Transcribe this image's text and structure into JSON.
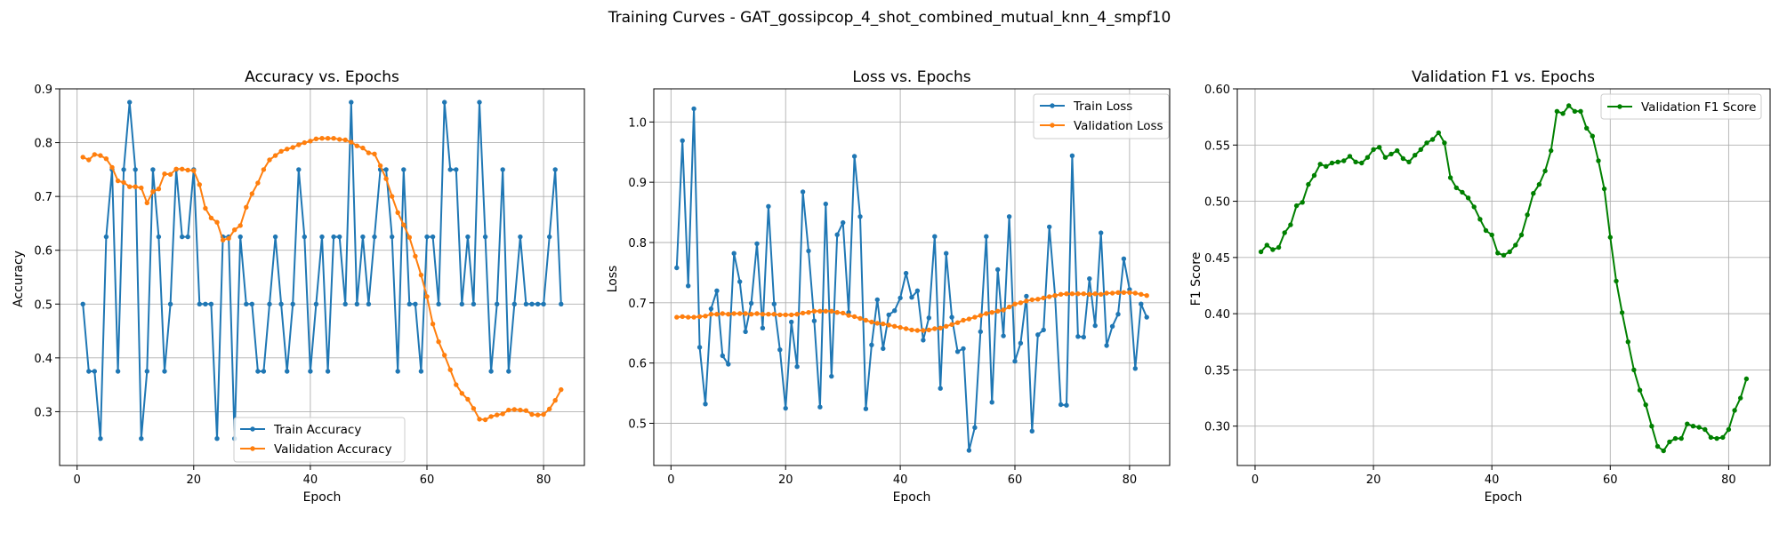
{
  "figure_title": "Training Curves - GAT_gossipcop_4_shot_combined_mutual_knn_4_smpf10",
  "colors": {
    "train": "#1f77b4",
    "validation": "#ff7f0e",
    "f1": "#008000"
  },
  "chart_data": [
    {
      "type": "line",
      "title": "Accuracy vs. Epochs",
      "xlabel": "Epoch",
      "ylabel": "Accuracy",
      "xlim": [
        -3,
        87
      ],
      "ylim": [
        0.2,
        0.9
      ],
      "xticks": [
        0,
        20,
        40,
        60,
        80
      ],
      "yticks": [
        0.3,
        0.4,
        0.5,
        0.6,
        0.7,
        0.8,
        0.9
      ],
      "ytick_decimals": 1,
      "grid": true,
      "legend": "lower center",
      "series": [
        {
          "name": "Train Accuracy",
          "color": "#1f77b4",
          "x": [
            1,
            2,
            3,
            4,
            5,
            6,
            7,
            8,
            9,
            10,
            11,
            12,
            13,
            14,
            15,
            16,
            17,
            18,
            19,
            20,
            21,
            22,
            23,
            24,
            25,
            26,
            27,
            28,
            29,
            30,
            31,
            32,
            33,
            34,
            35,
            36,
            37,
            38,
            39,
            40,
            41,
            42,
            43,
            44,
            45,
            46,
            47,
            48,
            49,
            50,
            51,
            52,
            53,
            54,
            55,
            56,
            57,
            58,
            59,
            60,
            61,
            62,
            63,
            64,
            65,
            66,
            67,
            68,
            69,
            70,
            71,
            72,
            73,
            74,
            75,
            76,
            77,
            78,
            79,
            80,
            81,
            82,
            83
          ],
          "values": [
            0.5,
            0.375,
            0.375,
            0.25,
            0.625,
            0.75,
            0.375,
            0.75,
            0.875,
            0.75,
            0.25,
            0.375,
            0.75,
            0.625,
            0.375,
            0.5,
            0.75,
            0.625,
            0.625,
            0.75,
            0.5,
            0.5,
            0.5,
            0.25,
            0.625,
            0.625,
            0.25,
            0.625,
            0.5,
            0.5,
            0.375,
            0.375,
            0.5,
            0.625,
            0.5,
            0.375,
            0.5,
            0.75,
            0.625,
            0.375,
            0.5,
            0.625,
            0.375,
            0.625,
            0.625,
            0.5,
            0.875,
            0.5,
            0.625,
            0.5,
            0.625,
            0.75,
            0.75,
            0.625,
            0.375,
            0.75,
            0.5,
            0.5,
            0.375,
            0.625,
            0.625,
            0.5,
            0.875,
            0.75,
            0.75,
            0.5,
            0.625,
            0.5,
            0.875,
            0.625,
            0.375,
            0.5,
            0.75,
            0.375,
            0.5,
            0.625,
            0.5,
            0.5,
            0.5,
            0.5,
            0.625,
            0.75,
            0.5
          ]
        },
        {
          "name": "Validation Accuracy",
          "color": "#ff7f0e",
          "x": [
            1,
            2,
            3,
            4,
            5,
            6,
            7,
            8,
            9,
            10,
            11,
            12,
            13,
            14,
            15,
            16,
            17,
            18,
            19,
            20,
            21,
            22,
            23,
            24,
            25,
            26,
            27,
            28,
            29,
            30,
            31,
            32,
            33,
            34,
            35,
            36,
            37,
            38,
            39,
            40,
            41,
            42,
            43,
            44,
            45,
            46,
            47,
            48,
            49,
            50,
            51,
            52,
            53,
            54,
            55,
            56,
            57,
            58,
            59,
            60,
            61,
            62,
            63,
            64,
            65,
            66,
            67,
            68,
            69,
            70,
            71,
            72,
            73,
            74,
            75,
            76,
            77,
            78,
            79,
            80,
            81,
            82,
            83
          ],
          "values": [
            0.773,
            0.768,
            0.778,
            0.776,
            0.77,
            0.754,
            0.729,
            0.726,
            0.718,
            0.718,
            0.716,
            0.688,
            0.709,
            0.714,
            0.742,
            0.741,
            0.751,
            0.751,
            0.749,
            0.748,
            0.722,
            0.678,
            0.66,
            0.652,
            0.619,
            0.622,
            0.638,
            0.646,
            0.68,
            0.705,
            0.725,
            0.75,
            0.768,
            0.776,
            0.784,
            0.788,
            0.791,
            0.796,
            0.8,
            0.803,
            0.807,
            0.808,
            0.808,
            0.808,
            0.806,
            0.805,
            0.801,
            0.794,
            0.79,
            0.781,
            0.779,
            0.757,
            0.733,
            0.7,
            0.67,
            0.647,
            0.624,
            0.589,
            0.554,
            0.514,
            0.463,
            0.43,
            0.405,
            0.378,
            0.35,
            0.334,
            0.323,
            0.306,
            0.286,
            0.285,
            0.291,
            0.294,
            0.296,
            0.303,
            0.304,
            0.303,
            0.302,
            0.295,
            0.294,
            0.295,
            0.305,
            0.321,
            0.341
          ]
        }
      ]
    },
    {
      "type": "line",
      "title": "Loss vs. Epochs",
      "xlabel": "Epoch",
      "ylabel": "Loss",
      "xlim": [
        -3,
        87
      ],
      "ylim": [
        0.43,
        1.055
      ],
      "xticks": [
        0,
        20,
        40,
        60,
        80
      ],
      "yticks": [
        0.5,
        0.6,
        0.7,
        0.8,
        0.9,
        1.0
      ],
      "ytick_decimals": 1,
      "grid": true,
      "legend": "top-right",
      "series": [
        {
          "name": "Train Loss",
          "color": "#1f77b4",
          "x": [
            1,
            2,
            3,
            4,
            5,
            6,
            7,
            8,
            9,
            10,
            11,
            12,
            13,
            14,
            15,
            16,
            17,
            18,
            19,
            20,
            21,
            22,
            23,
            24,
            25,
            26,
            27,
            28,
            29,
            30,
            31,
            32,
            33,
            34,
            35,
            36,
            37,
            38,
            39,
            40,
            41,
            42,
            43,
            44,
            45,
            46,
            47,
            48,
            49,
            50,
            51,
            52,
            53,
            54,
            55,
            56,
            57,
            58,
            59,
            60,
            61,
            62,
            63,
            64,
            65,
            66,
            67,
            68,
            69,
            70,
            71,
            72,
            73,
            74,
            75,
            76,
            77,
            78,
            79,
            80,
            81,
            82,
            83
          ],
          "values": [
            0.758,
            0.969,
            0.728,
            1.022,
            0.626,
            0.532,
            0.69,
            0.72,
            0.612,
            0.598,
            0.782,
            0.735,
            0.652,
            0.699,
            0.798,
            0.658,
            0.86,
            0.698,
            0.622,
            0.525,
            0.668,
            0.594,
            0.884,
            0.786,
            0.67,
            0.527,
            0.864,
            0.578,
            0.813,
            0.833,
            0.684,
            0.943,
            0.843,
            0.524,
            0.63,
            0.705,
            0.624,
            0.68,
            0.687,
            0.708,
            0.749,
            0.709,
            0.72,
            0.638,
            0.675,
            0.81,
            0.558,
            0.782,
            0.676,
            0.619,
            0.624,
            0.455,
            0.493,
            0.652,
            0.81,
            0.535,
            0.755,
            0.645,
            0.843,
            0.603,
            0.633,
            0.711,
            0.487,
            0.647,
            0.655,
            0.826,
            0.712,
            0.531,
            0.53,
            0.944,
            0.644,
            0.643,
            0.74,
            0.662,
            0.816,
            0.629,
            0.661,
            0.681,
            0.773,
            0.722,
            0.591,
            0.698,
            0.676
          ]
        },
        {
          "name": "Validation Loss",
          "color": "#ff7f0e",
          "x": [
            1,
            2,
            3,
            4,
            5,
            6,
            7,
            8,
            9,
            10,
            11,
            12,
            13,
            14,
            15,
            16,
            17,
            18,
            19,
            20,
            21,
            22,
            23,
            24,
            25,
            26,
            27,
            28,
            29,
            30,
            31,
            32,
            33,
            34,
            35,
            36,
            37,
            38,
            39,
            40,
            41,
            42,
            43,
            44,
            45,
            46,
            47,
            48,
            49,
            50,
            51,
            52,
            53,
            54,
            55,
            56,
            57,
            58,
            59,
            60,
            61,
            62,
            63,
            64,
            65,
            66,
            67,
            68,
            69,
            70,
            71,
            72,
            73,
            74,
            75,
            76,
            77,
            78,
            79,
            80,
            81,
            82,
            83
          ],
          "values": [
            0.676,
            0.677,
            0.676,
            0.676,
            0.677,
            0.678,
            0.681,
            0.681,
            0.682,
            0.681,
            0.682,
            0.682,
            0.682,
            0.681,
            0.682,
            0.681,
            0.681,
            0.681,
            0.68,
            0.68,
            0.68,
            0.681,
            0.683,
            0.684,
            0.686,
            0.686,
            0.686,
            0.686,
            0.684,
            0.683,
            0.679,
            0.677,
            0.674,
            0.671,
            0.668,
            0.666,
            0.665,
            0.663,
            0.661,
            0.659,
            0.657,
            0.655,
            0.654,
            0.654,
            0.655,
            0.657,
            0.658,
            0.661,
            0.664,
            0.667,
            0.671,
            0.673,
            0.676,
            0.679,
            0.682,
            0.684,
            0.686,
            0.688,
            0.693,
            0.698,
            0.7,
            0.703,
            0.705,
            0.706,
            0.708,
            0.71,
            0.712,
            0.714,
            0.715,
            0.715,
            0.715,
            0.715,
            0.714,
            0.715,
            0.714,
            0.716,
            0.716,
            0.717,
            0.717,
            0.717,
            0.716,
            0.714,
            0.712
          ]
        }
      ]
    },
    {
      "type": "line",
      "title": "Validation F1 vs. Epochs",
      "xlabel": "Epoch",
      "ylabel": "F1 Score",
      "xlim": [
        -3,
        87
      ],
      "ylim": [
        0.265,
        0.6
      ],
      "xticks": [
        0,
        20,
        40,
        60,
        80
      ],
      "yticks": [
        0.3,
        0.35,
        0.4,
        0.45,
        0.5,
        0.55,
        0.6
      ],
      "ytick_decimals": 2,
      "grid": true,
      "legend": "top-right",
      "series": [
        {
          "name": "Validation F1 Score",
          "color": "#008000",
          "x": [
            1,
            2,
            3,
            4,
            5,
            6,
            7,
            8,
            9,
            10,
            11,
            12,
            13,
            14,
            15,
            16,
            17,
            18,
            19,
            20,
            21,
            22,
            23,
            24,
            25,
            26,
            27,
            28,
            29,
            30,
            31,
            32,
            33,
            34,
            35,
            36,
            37,
            38,
            39,
            40,
            41,
            42,
            43,
            44,
            45,
            46,
            47,
            48,
            49,
            50,
            51,
            52,
            53,
            54,
            55,
            56,
            57,
            58,
            59,
            60,
            61,
            62,
            63,
            64,
            65,
            66,
            67,
            68,
            69,
            70,
            71,
            72,
            73,
            74,
            75,
            76,
            77,
            78,
            79,
            80,
            81,
            82,
            83
          ],
          "values": [
            0.455,
            0.461,
            0.457,
            0.459,
            0.472,
            0.479,
            0.496,
            0.499,
            0.515,
            0.523,
            0.533,
            0.531,
            0.534,
            0.535,
            0.536,
            0.54,
            0.535,
            0.534,
            0.539,
            0.546,
            0.548,
            0.539,
            0.542,
            0.545,
            0.538,
            0.535,
            0.541,
            0.546,
            0.552,
            0.555,
            0.561,
            0.552,
            0.521,
            0.512,
            0.508,
            0.503,
            0.495,
            0.484,
            0.474,
            0.47,
            0.454,
            0.452,
            0.455,
            0.461,
            0.47,
            0.488,
            0.507,
            0.515,
            0.527,
            0.545,
            0.58,
            0.578,
            0.585,
            0.58,
            0.58,
            0.565,
            0.558,
            0.536,
            0.511,
            0.468,
            0.429,
            0.401,
            0.375,
            0.35,
            0.332,
            0.319,
            0.3,
            0.282,
            0.278,
            0.286,
            0.289,
            0.289,
            0.302,
            0.3,
            0.299,
            0.297,
            0.29,
            0.289,
            0.29,
            0.297,
            0.314,
            0.325,
            0.342
          ]
        }
      ]
    }
  ]
}
